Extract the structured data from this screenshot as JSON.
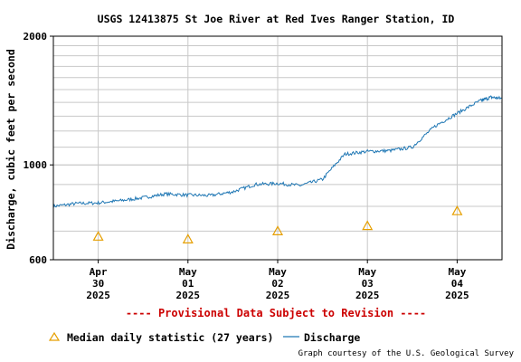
{
  "chart_data": {
    "type": "line",
    "title": "USGS 12413875 St Joe River at Red Ives Ranger Station, ID",
    "ylabel": "Discharge, cubic feet per second",
    "y_scale": "log",
    "ylim": [
      600,
      2000
    ],
    "y_ticks": [
      {
        "value": 600,
        "label": "600"
      },
      {
        "value": 1000,
        "label": "1000"
      },
      {
        "value": 2000,
        "label": "2000"
      }
    ],
    "x_ticks": [
      {
        "line1": "Apr",
        "line2": "30",
        "line3": "2025"
      },
      {
        "line1": "May",
        "line2": "01",
        "line3": "2025"
      },
      {
        "line1": "May",
        "line2": "02",
        "line3": "2025"
      },
      {
        "line1": "May",
        "line2": "03",
        "line3": "2025"
      },
      {
        "line1": "May",
        "line2": "04",
        "line3": "2025"
      }
    ],
    "xlim_days": [
      "Apr 29 2025 12:00",
      "May 04 2025 12:00"
    ],
    "grid": true,
    "series": [
      {
        "name": "Discharge",
        "color": "#1f77b4",
        "style": "line",
        "points": [
          [
            "2025-04-29 12:00",
            800
          ],
          [
            "2025-04-29 18:00",
            812
          ],
          [
            "2025-04-30 00:00",
            815
          ],
          [
            "2025-04-30 06:00",
            825
          ],
          [
            "2025-04-30 12:00",
            838
          ],
          [
            "2025-04-30 18:00",
            855
          ],
          [
            "2025-05-01 00:00",
            850
          ],
          [
            "2025-05-01 06:00",
            848
          ],
          [
            "2025-05-01 12:00",
            865
          ],
          [
            "2025-05-01 18:00",
            900
          ],
          [
            "2025-05-02 00:00",
            905
          ],
          [
            "2025-05-02 06:00",
            895
          ],
          [
            "2025-05-02 12:00",
            925
          ],
          [
            "2025-05-02 18:00",
            1060
          ],
          [
            "2025-05-03 00:00",
            1075
          ],
          [
            "2025-05-03 06:00",
            1080
          ],
          [
            "2025-05-03 12:00",
            1100
          ],
          [
            "2025-05-03 18:00",
            1230
          ],
          [
            "2025-05-04 00:00",
            1320
          ],
          [
            "2025-05-04 06:00",
            1410
          ],
          [
            "2025-05-04 09:00",
            1440
          ],
          [
            "2025-05-04 12:00",
            1430
          ]
        ]
      },
      {
        "name": "Median daily statistic (27 years)",
        "color": "#e69f00",
        "style": "triangle",
        "points": [
          [
            "2025-04-30 00:00",
            680
          ],
          [
            "2025-05-01 00:00",
            670
          ],
          [
            "2025-05-02 00:00",
            700
          ],
          [
            "2025-05-03 00:00",
            720
          ],
          [
            "2025-05-04 00:00",
            780
          ]
        ]
      }
    ],
    "notice": "---- Provisional Data Subject to Revision ----",
    "legend": [
      {
        "label": "Median daily statistic (27 years)",
        "marker": "triangle",
        "color": "#e69f00"
      },
      {
        "label": "Discharge",
        "marker": "line",
        "color": "#1f77b4"
      }
    ],
    "credit": "Graph courtesy of the U.S. Geological Survey"
  }
}
